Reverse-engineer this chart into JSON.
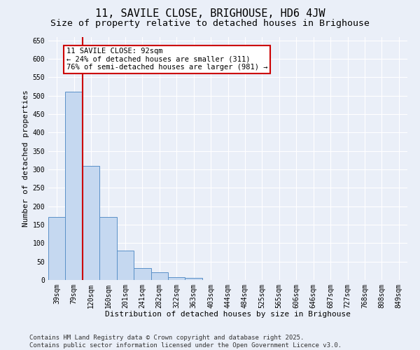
{
  "title": "11, SAVILE CLOSE, BRIGHOUSE, HD6 4JW",
  "subtitle": "Size of property relative to detached houses in Brighouse",
  "xlabel": "Distribution of detached houses by size in Brighouse",
  "ylabel": "Number of detached properties",
  "categories": [
    "39sqm",
    "79sqm",
    "120sqm",
    "160sqm",
    "201sqm",
    "241sqm",
    "282sqm",
    "322sqm",
    "363sqm",
    "403sqm",
    "444sqm",
    "484sqm",
    "525sqm",
    "565sqm",
    "606sqm",
    "646sqm",
    "687sqm",
    "727sqm",
    "768sqm",
    "808sqm",
    "849sqm"
  ],
  "values": [
    170,
    510,
    310,
    170,
    80,
    33,
    20,
    8,
    5,
    0,
    0,
    0,
    0,
    0,
    0,
    0,
    0,
    0,
    0,
    0,
    0
  ],
  "bar_color": "#c5d8f0",
  "bar_edge_color": "#5a90c8",
  "vline_x": 1.5,
  "vline_color": "#cc0000",
  "annotation_text": "11 SAVILE CLOSE: 92sqm\n← 24% of detached houses are smaller (311)\n76% of semi-detached houses are larger (981) →",
  "annotation_box_color": "#ffffff",
  "annotation_box_edge_color": "#cc0000",
  "ylim": [
    0,
    660
  ],
  "yticks": [
    0,
    50,
    100,
    150,
    200,
    250,
    300,
    350,
    400,
    450,
    500,
    550,
    600,
    650
  ],
  "bg_color": "#eaeff8",
  "grid_color": "#ffffff",
  "footer": "Contains HM Land Registry data © Crown copyright and database right 2025.\nContains public sector information licensed under the Open Government Licence v3.0.",
  "title_fontsize": 11,
  "subtitle_fontsize": 9.5,
  "xlabel_fontsize": 8,
  "ylabel_fontsize": 8,
  "tick_fontsize": 7,
  "annotation_fontsize": 7.5,
  "footer_fontsize": 6.5
}
